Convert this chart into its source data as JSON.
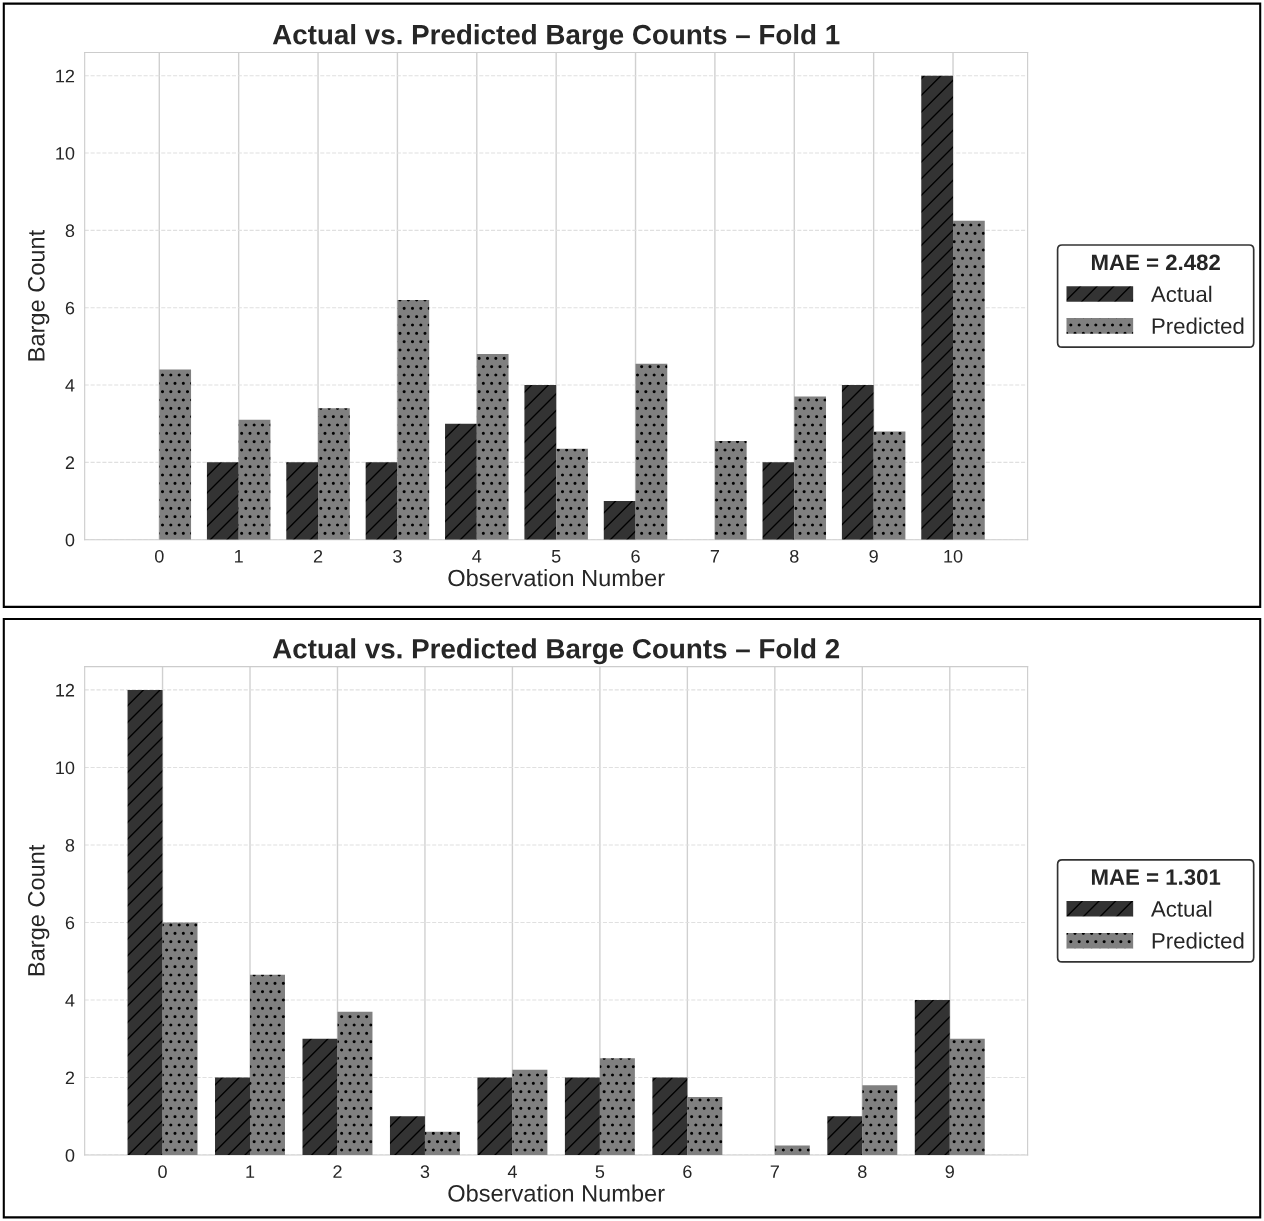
{
  "chart_data": [
    {
      "type": "bar",
      "title": "Actual vs. Predicted Barge Counts – Fold 1",
      "xlabel": "Observation Number",
      "ylabel": "Barge Count",
      "legend_title": "MAE = 2.482",
      "legend": "right",
      "grid": true,
      "categories": [
        "0",
        "1",
        "2",
        "3",
        "4",
        "5",
        "6",
        "7",
        "8",
        "9",
        "10"
      ],
      "ylim": [
        0,
        12.6
      ],
      "yticks": [
        0,
        2,
        4,
        6,
        8,
        10,
        12
      ],
      "series": [
        {
          "name": "Actual",
          "color": "#333333",
          "values": [
            0,
            2,
            2,
            2,
            3,
            4,
            1,
            0,
            2,
            4,
            12
          ]
        },
        {
          "name": "Predicted",
          "color": "#808080",
          "values": [
            4.4,
            3.1,
            3.4,
            6.2,
            4.8,
            2.35,
            4.55,
            2.55,
            3.7,
            2.8,
            8.25
          ]
        }
      ]
    },
    {
      "type": "bar",
      "title": "Actual vs. Predicted Barge Counts – Fold 2",
      "xlabel": "Observation Number",
      "ylabel": "Barge Count",
      "legend_title": "MAE = 1.301",
      "legend": "right",
      "grid": true,
      "categories": [
        "0",
        "1",
        "2",
        "3",
        "4",
        "5",
        "6",
        "7",
        "8",
        "9"
      ],
      "ylim": [
        0,
        12.6
      ],
      "yticks": [
        0,
        2,
        4,
        6,
        8,
        10,
        12
      ],
      "series": [
        {
          "name": "Actual",
          "color": "#333333",
          "values": [
            12,
            2,
            3,
            1,
            2,
            2,
            2,
            0,
            1,
            4
          ]
        },
        {
          "name": "Predicted",
          "color": "#808080",
          "values": [
            6.0,
            4.65,
            3.7,
            0.6,
            2.2,
            2.5,
            1.5,
            0.25,
            1.8,
            3.0
          ]
        }
      ]
    }
  ]
}
